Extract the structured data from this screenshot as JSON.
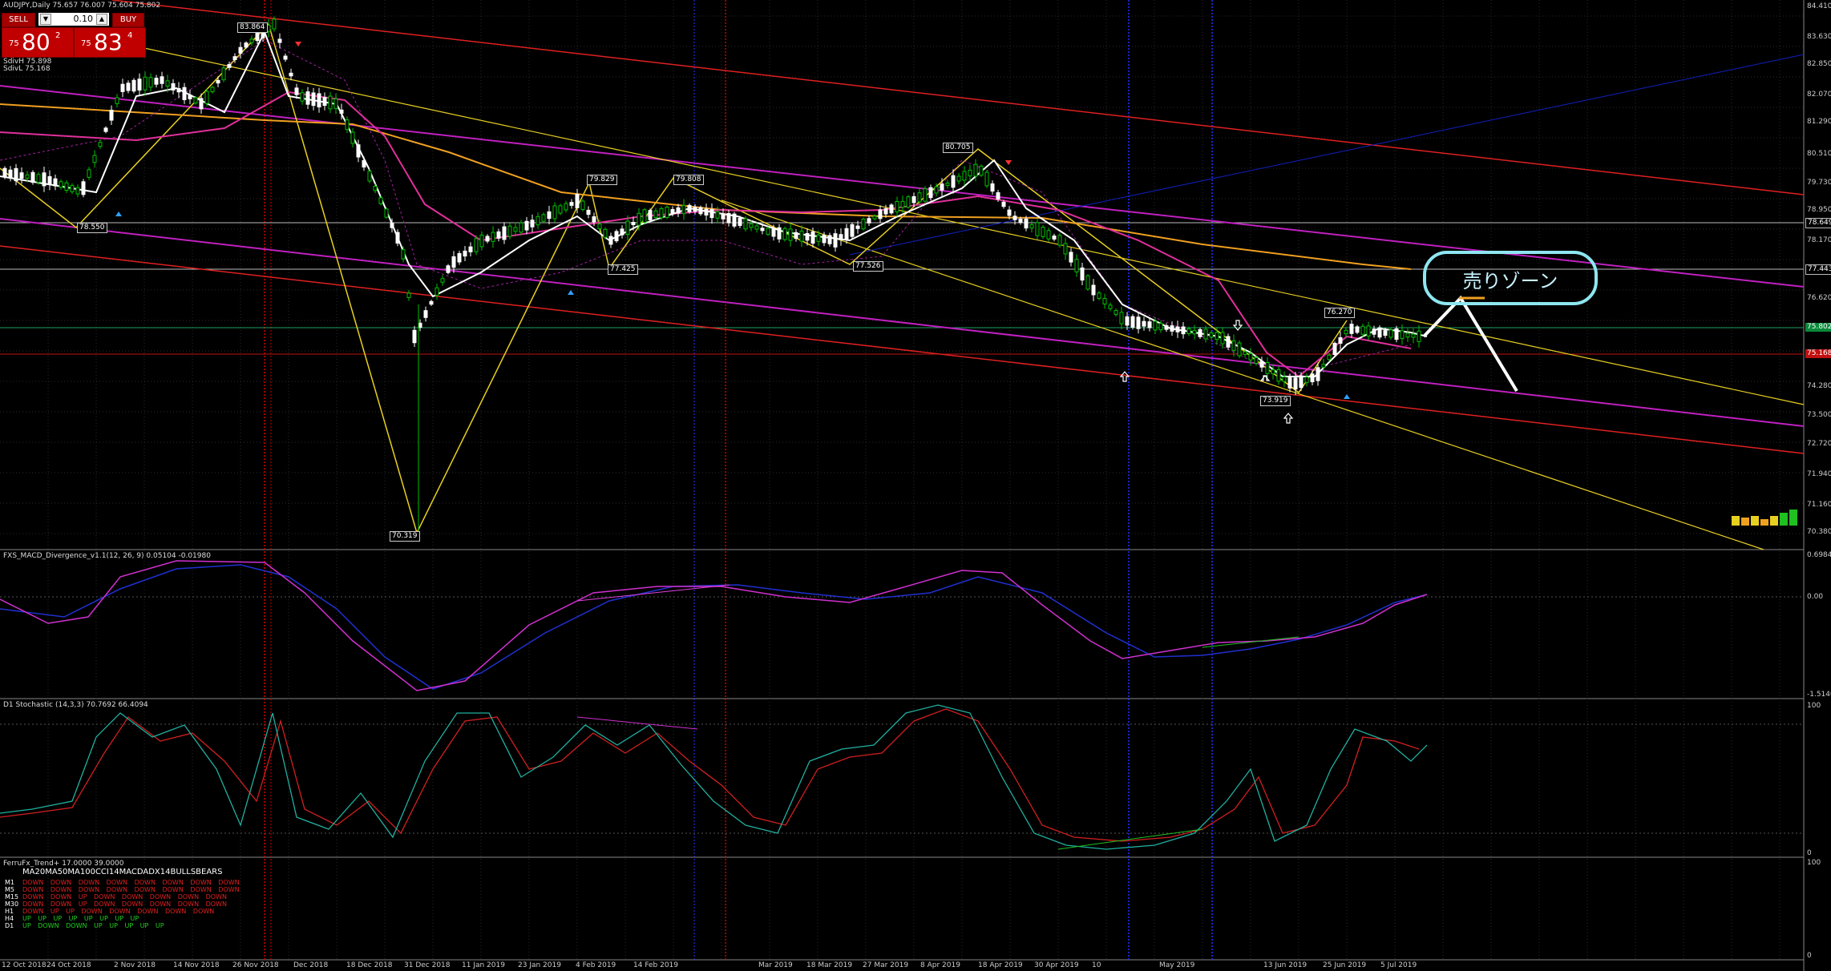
{
  "window": {
    "symbol_line": "AUDJPY,Daily  75.657 76.007 75.604 75.802"
  },
  "trade_panel": {
    "sell_label": "SELL",
    "buy_label": "BUY",
    "lot_value": "0.10",
    "sell_price": {
      "prefix": "75",
      "big": "80",
      "sup": "2"
    },
    "buy_price": {
      "prefix": "75",
      "big": "83",
      "sup": "4"
    }
  },
  "indicator_info": {
    "line1": "SdivH 75.898",
    "line2": "SdivL 75.168"
  },
  "main_chart": {
    "price_axis": [
      "84.410",
      "83.630",
      "82.850",
      "82.070",
      "81.290",
      "80.510",
      "79.730",
      "78.950",
      "78.170",
      "76.620",
      "75.840",
      "75.060",
      "74.280",
      "73.500",
      "72.720",
      "71.940",
      "71.160",
      "70.380"
    ],
    "current_prices": {
      "upper": "78.649",
      "middle": "77.443",
      "green": "75.802",
      "red": "75.168"
    },
    "swing_labels": [
      "83.864",
      "78.550",
      "70.319",
      "79.829",
      "77.425",
      "79.808",
      "77.526",
      "80.705",
      "76.270",
      "73.919"
    ],
    "annotation": "売りゾーン"
  },
  "macd_panel": {
    "title": "FXS_MACD_Divergence_v1.1(12, 26, 9) 0.05104 -0.01980",
    "axis": [
      "0.69848",
      "0.00",
      "-1.51401"
    ]
  },
  "stoch_panel": {
    "title": "D1 Stochastic (14,3,3) 70.7692 66.4094",
    "axis": [
      "100",
      "0"
    ]
  },
  "trend_panel": {
    "title": "FerruFx_Trend+ 17.0000 39.0000",
    "header": "MA20MA50MA100CCI14MACDADX14BULLSBEARS",
    "rows": [
      {
        "tf": "M1",
        "vals": "DOWN DOWN DOWN DOWN DOWN DOWN DOWN DOWN",
        "color": "#e02020"
      },
      {
        "tf": "M5",
        "vals": "DOWN DOWN DOWN DOWN DOWN DOWN DOWN DOWN",
        "color": "#e02020"
      },
      {
        "tf": "M15",
        "vals": "DOWN DOWN UP   DOWN DOWN DOWN DOWN DOWN",
        "color": "#e02020"
      },
      {
        "tf": "M30",
        "vals": "DOWN DOWN UP   DOWN DOWN DOWN DOWN DOWN",
        "color": "#e02020"
      },
      {
        "tf": "H1",
        "vals": "DOWN UP   UP   DOWN DOWN DOWN DOWN DOWN",
        "color": "#e02020"
      },
      {
        "tf": "H4",
        "vals": "UP   UP   UP   UP   UP   UP   UP   UP",
        "color": "#20d020"
      },
      {
        "tf": "D1",
        "vals": "UP   DOWN DOWN UP   UP   UP   UP   UP",
        "color": "#20d020"
      }
    ],
    "axis": [
      "100",
      "0"
    ]
  },
  "time_axis": [
    "12 Oct 2018",
    "24 Oct 2018",
    "2 Nov 2018",
    "14 Nov 2018",
    "26 Nov 2018",
    "Dec 2018",
    "18 Dec 2018",
    "31 Dec 2018",
    "11 Jan 2019",
    "23 Jan 2019",
    "4 Feb 2019",
    "14 Feb 2019",
    "Mar 2019",
    "18 Mar 2019",
    "27 Mar 2019",
    "8 Apr 2019",
    "18 Apr 2019",
    "30 Apr 2019",
    "10",
    "May 2019",
    "13 Jun 2019",
    "25 Jun 2019",
    "5 Jul 2019"
  ],
  "colors": {
    "bull": "#00c000",
    "bear": "#ffffff",
    "ma_fast": "#ffffff",
    "ma_pink": "#e0309a",
    "ma_orange": "#f0a020",
    "trend_red": "#e02020",
    "trend_magenta": "#c020c0",
    "trend_yellow": "#e8d020"
  }
}
